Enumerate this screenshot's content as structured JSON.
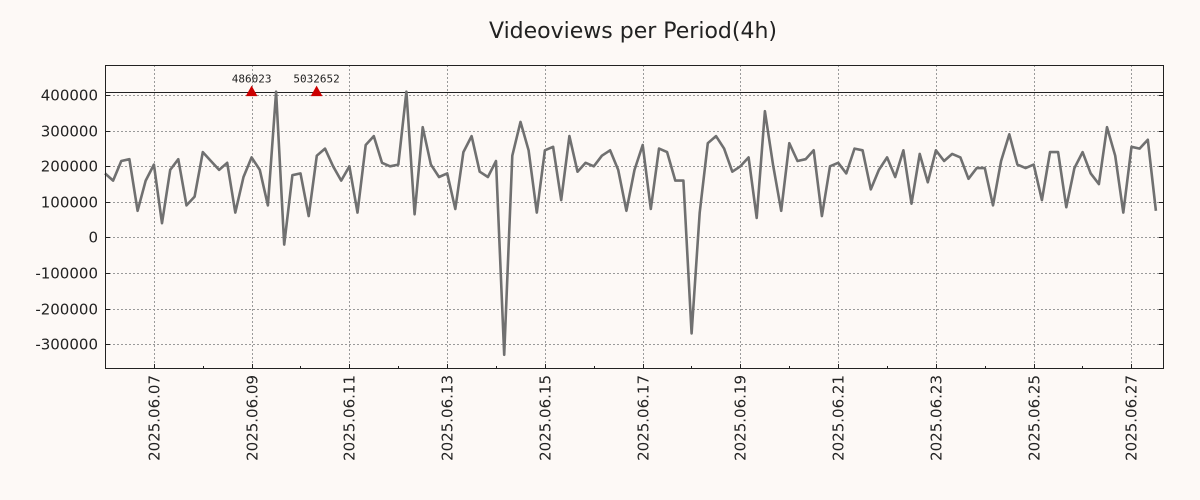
{
  "chart_data": {
    "type": "line",
    "title": "Videoviews per Period(4h)",
    "xlabel": "",
    "ylabel": "",
    "ylim": [
      -370000,
      485000
    ],
    "y_ticks": [
      400000,
      300000,
      200000,
      100000,
      0,
      -100000,
      -200000,
      -300000
    ],
    "y_tick_labels": [
      "400000",
      "300000",
      "200000",
      "100000",
      "0",
      "-100000",
      "-200000",
      "-300000"
    ],
    "x_range_days": [
      0,
      21.67
    ],
    "x_tick_days": [
      1,
      3,
      5,
      7,
      9,
      11,
      13,
      15,
      17,
      19,
      21
    ],
    "x_tick_labels": [
      "2025.06.07",
      "2025.06.09",
      "2025.06.11",
      "2025.06.13",
      "2025.06.15",
      "2025.06.17",
      "2025.06.19",
      "2025.06.21",
      "2025.06.23",
      "2025.06.25",
      "2025.06.27"
    ],
    "grid": true,
    "reference_line": 410000,
    "annotations": [
      {
        "label": "486023",
        "x_day": 3.0,
        "y": 410000
      },
      {
        "label": "5032652",
        "x_day": 4.33,
        "y": 410000
      }
    ],
    "series": [
      {
        "name": "Videoviews",
        "color": "#707070",
        "marker_color": "#cc0000",
        "x_step_days": 0.1667,
        "values": [
          180000,
          160000,
          215000,
          220000,
          75000,
          160000,
          205000,
          40000,
          190000,
          220000,
          90000,
          115000,
          240000,
          215000,
          190000,
          210000,
          70000,
          170000,
          225000,
          190000,
          90000,
          410000,
          -20000,
          175000,
          180000,
          60000,
          230000,
          250000,
          200000,
          160000,
          200000,
          70000,
          260000,
          285000,
          210000,
          200000,
          205000,
          410000,
          65000,
          310000,
          205000,
          170000,
          180000,
          80000,
          240000,
          285000,
          185000,
          170000,
          215000,
          -330000,
          230000,
          325000,
          245000,
          70000,
          245000,
          255000,
          105000,
          285000,
          185000,
          210000,
          200000,
          230000,
          245000,
          190000,
          75000,
          190000,
          260000,
          80000,
          250000,
          240000,
          160000,
          160000,
          -270000,
          70000,
          265000,
          285000,
          250000,
          185000,
          200000,
          225000,
          55000,
          355000,
          205000,
          75000,
          265000,
          215000,
          220000,
          245000,
          60000,
          200000,
          210000,
          180000,
          250000,
          245000,
          135000,
          190000,
          225000,
          170000,
          245000,
          95000,
          235000,
          155000,
          245000,
          215000,
          235000,
          225000,
          165000,
          195000,
          195000,
          90000,
          215000,
          290000,
          205000,
          195000,
          205000,
          105000,
          240000,
          240000,
          85000,
          195000,
          240000,
          180000,
          150000,
          310000,
          230000,
          70000,
          255000,
          250000,
          275000,
          75000
        ]
      }
    ]
  }
}
